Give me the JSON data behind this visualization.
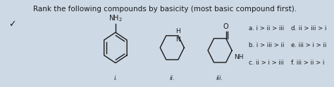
{
  "title": "Rank the following compounds by basicity (most basic compound first).",
  "checkmark": "✓",
  "compound_labels": [
    "i.",
    "ii.",
    "iii."
  ],
  "options_col1": [
    "a. i > ii > iii",
    "b. i > iii > ii",
    "c. ii > i > iii"
  ],
  "options_col2": [
    "d. ii > iii > i",
    "e. iii > i > ii",
    "f. iii > ii > i"
  ],
  "bg_color": "#cdd9e5",
  "text_color": "#1a1a1a",
  "title_fontsize": 7.5,
  "label_fontsize": 6.5,
  "option_fontsize": 6.2
}
